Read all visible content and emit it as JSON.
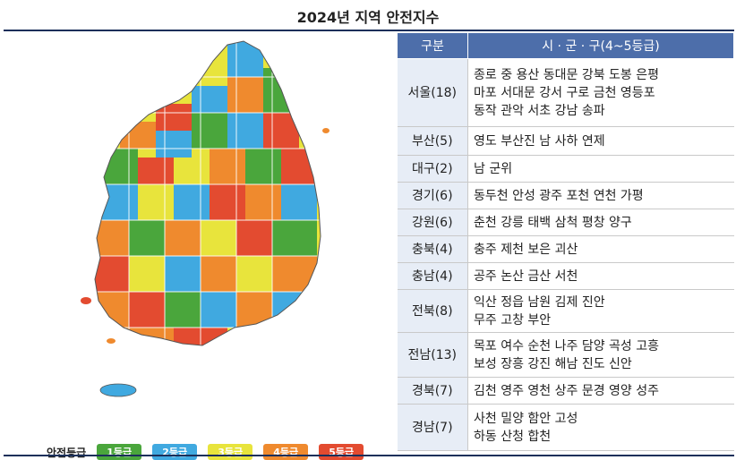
{
  "title": "2024년 지역 안전지수",
  "legend": {
    "title": "안전등급",
    "items": [
      {
        "label": "1등급",
        "color": "#4aa63c"
      },
      {
        "label": "2등급",
        "color": "#40a9e0"
      },
      {
        "label": "3등급",
        "color": "#e8e43c"
      },
      {
        "label": "4등급",
        "color": "#ef8a2e"
      },
      {
        "label": "5등급",
        "color": "#e34b30"
      }
    ]
  },
  "table": {
    "headers": [
      "구분",
      "시 · 군 · 구(4~5등급)"
    ],
    "rows": [
      {
        "region": "서울(18)",
        "lines": [
          "종로 중 용산 동대문 강북 도봉 은평",
          "마포 서대문 강서 구로 금천 영등포",
          "동작 관악 서초 강남 송파"
        ]
      },
      {
        "region": "부산(5)",
        "lines": [
          "영도 부산진 남 사하 연제"
        ]
      },
      {
        "region": "대구(2)",
        "lines": [
          "남 군위"
        ]
      },
      {
        "region": "경기(6)",
        "lines": [
          "동두천 안성 광주 포천 연천 가평"
        ]
      },
      {
        "region": "강원(6)",
        "lines": [
          "춘천 강릉 태백 삼척 평창 양구"
        ]
      },
      {
        "region": "충북(4)",
        "lines": [
          "충주 제천 보은 괴산"
        ]
      },
      {
        "region": "충남(4)",
        "lines": [
          "공주 논산 금산 서천"
        ]
      },
      {
        "region": "전북(8)",
        "lines": [
          "익산 정읍 남원 김제 진안",
          "무주 고창 부안"
        ]
      },
      {
        "region": "전남(13)",
        "lines": [
          "목포 여수 순천 나주 담양 곡성 고흥",
          "보성 장흥 강진 해남 진도 신안"
        ]
      },
      {
        "region": "경북(7)",
        "lines": [
          "김천 영주 영천 상주 문경 영양 성주"
        ]
      },
      {
        "region": "경남(7)",
        "lines": [
          "사천 밀양 함안 고성",
          "하동 산청 합천"
        ]
      }
    ]
  }
}
